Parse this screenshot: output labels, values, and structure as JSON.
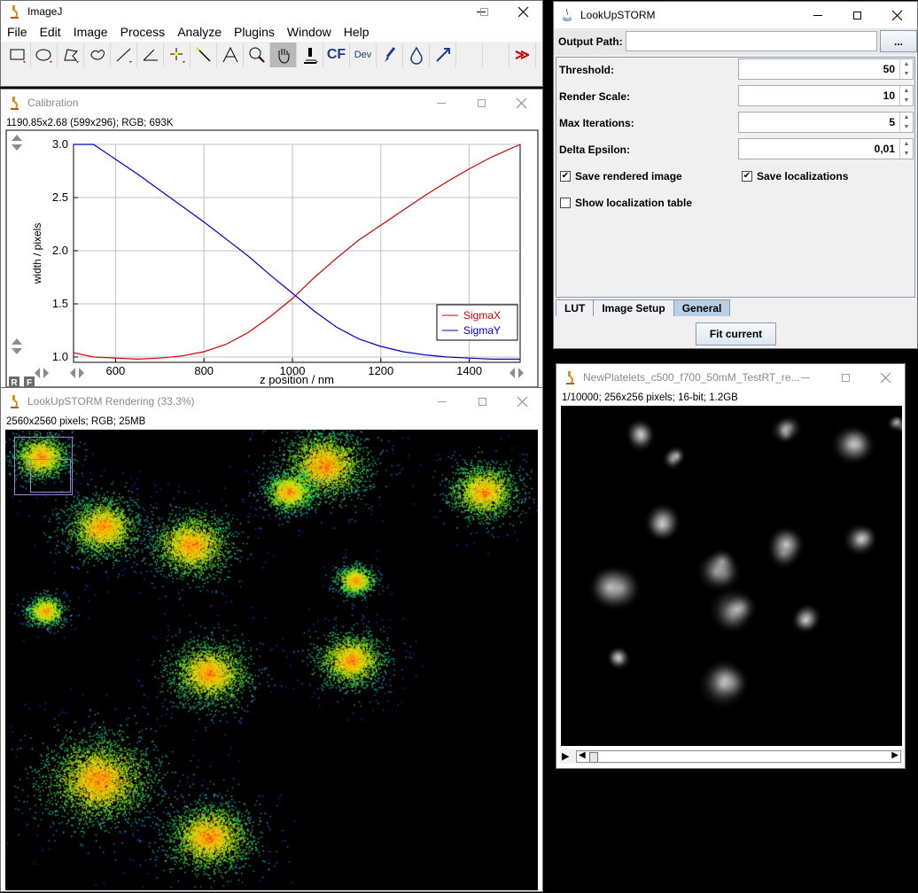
{
  "imagej": {
    "title": "ImageJ",
    "menus": [
      "File",
      "Edit",
      "Image",
      "Process",
      "Analyze",
      "Plugins",
      "Window",
      "Help"
    ],
    "tool_cf": "CF",
    "tool_dev": "Dev"
  },
  "calibration": {
    "title": "Calibration",
    "info": "1190.85x2.68   (599x296); RGB; 693K",
    "rf_labels": [
      "R",
      "F"
    ]
  },
  "chart_data": {
    "type": "line",
    "title": "",
    "xlabel": "z position / nm",
    "ylabel": "width / pixels",
    "xlim": [
      505,
      1515
    ],
    "ylim": [
      0.95,
      3.0
    ],
    "x_ticks": [
      600,
      800,
      1000,
      1200,
      1400
    ],
    "y_ticks": [
      1.0,
      1.5,
      2.0,
      2.5,
      3.0
    ],
    "x_tick_labels": [
      "600",
      "800",
      "1000",
      "1200",
      "1400"
    ],
    "y_tick_labels": [
      "1.0",
      "1.5",
      "2.0",
      "2.5",
      "3.0"
    ],
    "grid": true,
    "legend_position": "bottom-right",
    "series": [
      {
        "name": "SigmaX",
        "color": "#d00000",
        "x": [
          505,
          550,
          600,
          650,
          700,
          750,
          800,
          850,
          900,
          950,
          1000,
          1050,
          1100,
          1150,
          1200,
          1250,
          1300,
          1350,
          1400,
          1450,
          1515
        ],
        "y": [
          1.04,
          1.0,
          0.99,
          0.98,
          0.99,
          1.01,
          1.05,
          1.12,
          1.23,
          1.38,
          1.55,
          1.75,
          1.93,
          2.1,
          2.24,
          2.38,
          2.52,
          2.65,
          2.77,
          2.88,
          3.0
        ]
      },
      {
        "name": "SigmaY",
        "color": "#0000c8",
        "x": [
          505,
          550,
          600,
          650,
          700,
          750,
          800,
          850,
          900,
          950,
          1000,
          1050,
          1100,
          1150,
          1200,
          1250,
          1300,
          1350,
          1400,
          1450,
          1515
        ],
        "y": [
          3.05,
          3.0,
          2.86,
          2.72,
          2.57,
          2.42,
          2.27,
          2.11,
          1.95,
          1.77,
          1.6,
          1.43,
          1.28,
          1.17,
          1.1,
          1.05,
          1.02,
          1.0,
          0.99,
          0.98,
          0.98
        ]
      }
    ]
  },
  "rendering": {
    "title": "LookUpSTORM Rendering (33.3%)",
    "info": "2560x2560 pixels; RGB; 25MB"
  },
  "lookupstorm": {
    "title": "LookUpSTORM",
    "output_label": "Output Path:",
    "output_value": "",
    "browse_label": "...",
    "params": [
      {
        "label": "Threshold:",
        "value": "50"
      },
      {
        "label": "Render Scale:",
        "value": "10"
      },
      {
        "label": "Max Iterations:",
        "value": "5"
      },
      {
        "label": "Delta Epsilon:",
        "value": "0,01"
      }
    ],
    "checkboxes": [
      {
        "label": "Save rendered image",
        "checked": true
      },
      {
        "label": "Save localizations",
        "checked": true
      },
      {
        "label": "Show localization table",
        "checked": false
      }
    ],
    "tabs": [
      "LUT",
      "Image Setup",
      "General"
    ],
    "active_tab": "General",
    "fit_button": "Fit current"
  },
  "newplatelets": {
    "title": "NewPlatelets_c500_f700_50mM_TestRT_re...",
    "info": "1/10000; 256x256 pixels; 16-bit; 1.2GB"
  }
}
